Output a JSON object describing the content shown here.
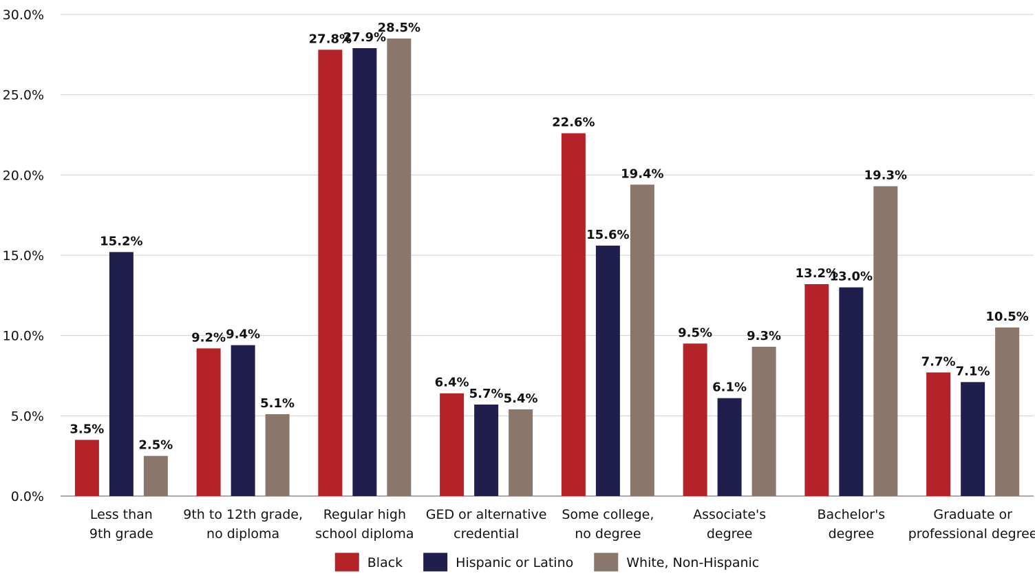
{
  "chart_data": {
    "type": "bar",
    "categories": [
      [
        "Less than",
        "9th grade"
      ],
      [
        "9th to 12th grade,",
        "no diploma"
      ],
      [
        "Regular high",
        "school diploma"
      ],
      [
        "GED or alternative",
        "credential"
      ],
      [
        "Some college,",
        "no degree"
      ],
      [
        "Associate's",
        "degree"
      ],
      [
        "Bachelor's",
        "degree"
      ],
      [
        "Graduate or",
        "professional degree"
      ]
    ],
    "series": [
      {
        "name": "Black",
        "color": "#b52228",
        "values": [
          3.5,
          9.2,
          27.8,
          6.4,
          22.6,
          9.5,
          13.2,
          7.7
        ],
        "labels": [
          "3.5%",
          "9.2%",
          "27.8%",
          "6.4%",
          "22.6%",
          "9.5%",
          "13.2%",
          "7.7%"
        ]
      },
      {
        "name": "Hispanic or Latino",
        "color": "#201e4c",
        "values": [
          15.2,
          9.4,
          27.9,
          5.7,
          15.6,
          6.1,
          13.0,
          7.1
        ],
        "labels": [
          "15.2%",
          "9.4%",
          "27.9%",
          "5.7%",
          "15.6%",
          "6.1%",
          "13.0%",
          "7.1%"
        ]
      },
      {
        "name": "White, Non-Hispanic",
        "color": "#8a766b",
        "values": [
          2.5,
          5.1,
          28.5,
          5.4,
          19.4,
          9.3,
          19.3,
          10.5
        ],
        "labels": [
          "2.5%",
          "5.1%",
          "28.5%",
          "5.4%",
          "19.4%",
          "9.3%",
          "19.3%",
          "10.5%"
        ]
      }
    ],
    "yticks": [
      0,
      5,
      10,
      15,
      20,
      25,
      30
    ],
    "ytick_labels": [
      "0.0%",
      "5.0%",
      "10.0%",
      "15.0%",
      "20.0%",
      "25.0%",
      "30.0%"
    ],
    "ylim": [
      0,
      30
    ],
    "grid": true,
    "legend": "bottom-center",
    "title": "",
    "xlabel": "",
    "ylabel": ""
  }
}
